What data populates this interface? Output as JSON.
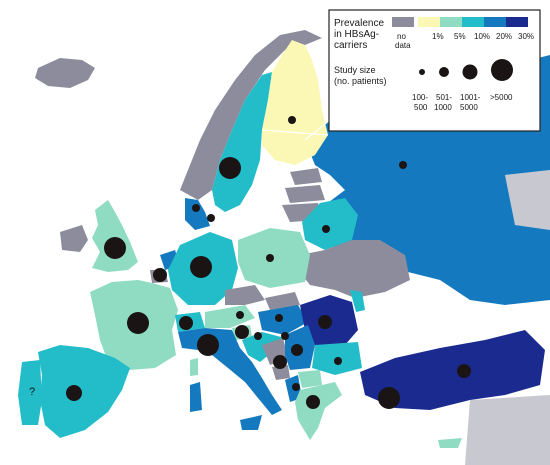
{
  "legend": {
    "prevalence_title_line1": "Prevalence",
    "prevalence_title_line2": "in HBsAg-",
    "prevalence_title_line3": "carriers",
    "no_data_line1": "no",
    "no_data_line2": "data",
    "thresholds": [
      "1%",
      "5%",
      "10%",
      "20%",
      "30%"
    ],
    "study_size_title_line1": "Study size",
    "study_size_title_line2": "(no. patients)",
    "size_labels": [
      {
        "line1": "100-",
        "line2": "500"
      },
      {
        "line1": "501-",
        "line2": "1000"
      },
      {
        "line1": "1001-",
        "line2": "5000"
      },
      {
        "line1": ">5000",
        "line2": ""
      }
    ]
  },
  "colors": {
    "sea": "#ffffff",
    "no_data": "#8c8c9c",
    "lt1": "#fbf7b4",
    "p1_5": "#8fdcc3",
    "p5_10": "#23bcc9",
    "p10_20": "#1479bf",
    "p20_30": "#1a2a8f",
    "border": "#ffffff",
    "dot": "#1a1414",
    "ocean_region": "#dcdce0"
  },
  "unknown_marker": "?"
}
